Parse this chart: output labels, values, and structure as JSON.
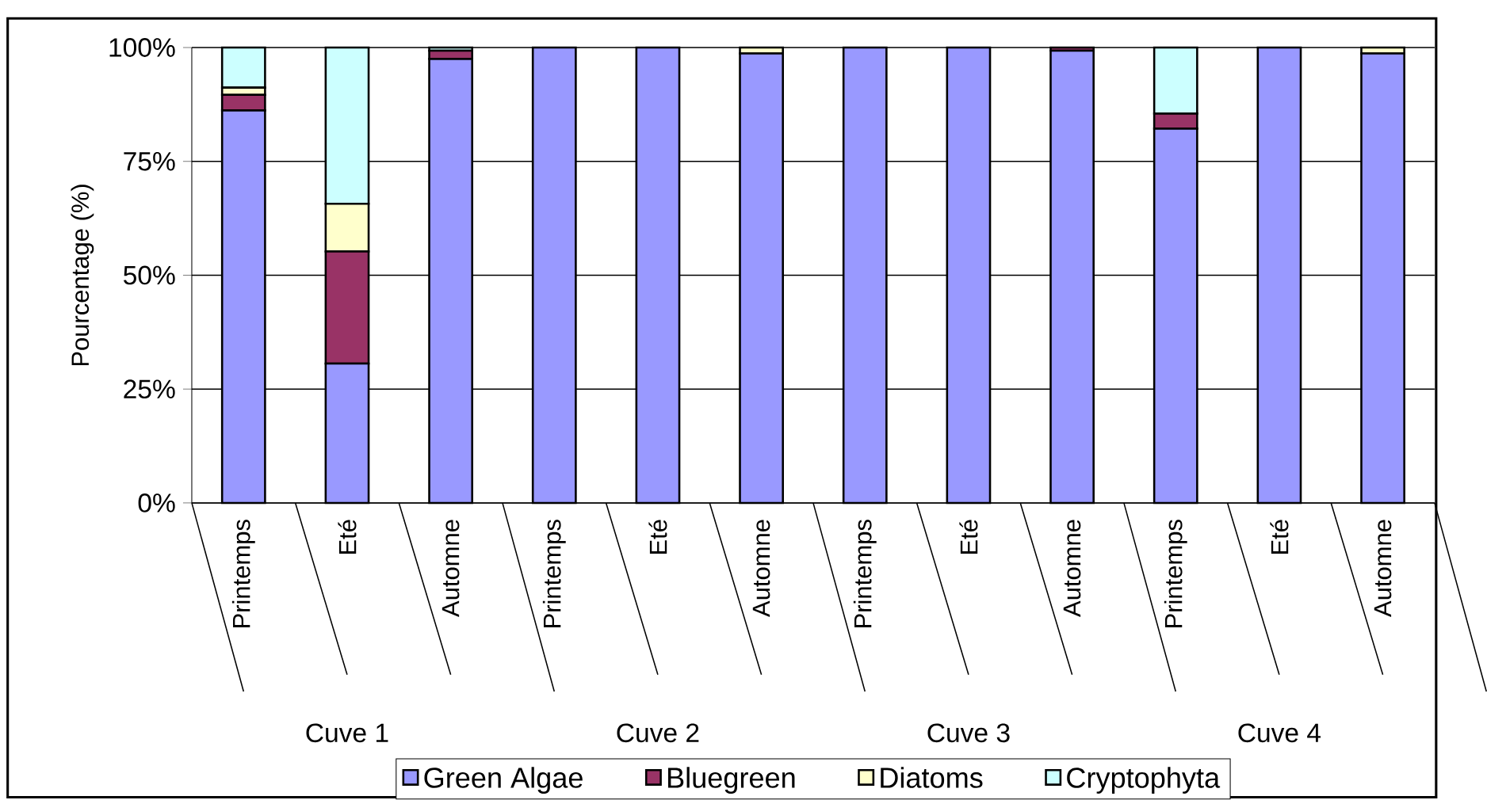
{
  "chart_data": {
    "type": "bar",
    "stacked": true,
    "ylabel": "Pourcentage (%)",
    "categories": [
      "Printemps",
      "Eté",
      "Automne",
      "Printemps",
      "Eté",
      "Automne",
      "Printemps",
      "Eté",
      "Automne",
      "Printemps",
      "Eté",
      "Automne"
    ],
    "annotations": [
      "Cuve 1",
      "Cuve 2",
      "Cuve 3",
      "Cuve 4"
    ],
    "series": [
      {
        "name": "Green Algae",
        "color": "#9999ff",
        "values": [
          86.2,
          30.6,
          97.5,
          100,
          100,
          98.7,
          100,
          100,
          99.3,
          82.2,
          100,
          98.7
        ]
      },
      {
        "name": "Bluegreen",
        "color": "#993366",
        "values": [
          3.4,
          24.6,
          1.8,
          0,
          0,
          0,
          0,
          0,
          0.7,
          3.3,
          0,
          0
        ]
      },
      {
        "name": "Diatoms",
        "color": "#ffffcc",
        "values": [
          1.6,
          10.5,
          0,
          0,
          0,
          1.3,
          0,
          0,
          0,
          0,
          0,
          1.3
        ]
      },
      {
        "name": "Cryptophyta",
        "color": "#ccffff",
        "values": [
          8.8,
          34.3,
          0.7,
          0,
          0,
          0,
          0,
          0,
          0,
          14.5,
          0,
          0
        ]
      }
    ],
    "ylim": [
      0,
      100
    ],
    "yticks": [
      {
        "value": 0,
        "label": "0%"
      },
      {
        "value": 25,
        "label": "25%"
      },
      {
        "value": 50,
        "label": "50%"
      },
      {
        "value": 75,
        "label": "75%"
      },
      {
        "value": 100,
        "label": "100%"
      }
    ],
    "grid": "y",
    "legend": "bottom"
  }
}
